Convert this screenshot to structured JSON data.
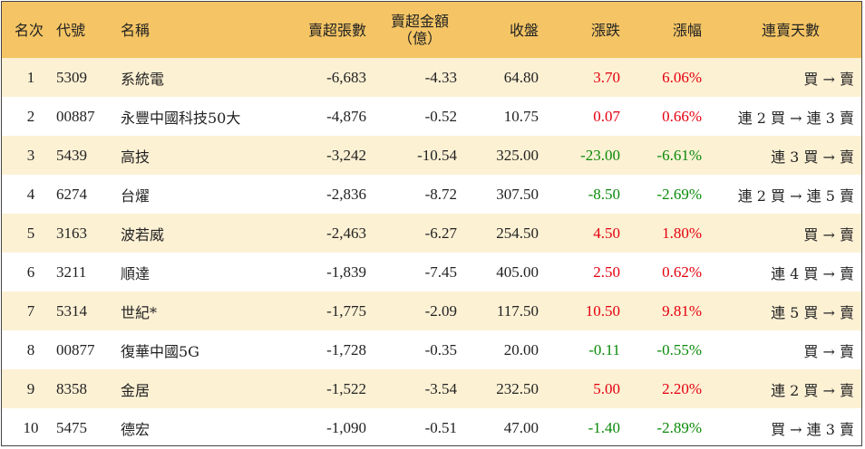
{
  "headers": {
    "rank": "名次",
    "code": "代號",
    "name": "名稱",
    "net_sell_lots": "賣超張數",
    "net_sell_amount_line1": "賣超金額",
    "net_sell_amount_line2": "（億）",
    "close": "收盤",
    "change": "漲跌",
    "pct_change": "漲幅",
    "streak": "連賣天數"
  },
  "colors": {
    "header_bg": "#F5C565",
    "odd_row_bg": "#FDF1D4",
    "even_row_bg": "#FFFFFF",
    "up": "#E4000F",
    "down": "#0A8A0A"
  },
  "rows": [
    {
      "rank": "1",
      "code": "5309",
      "name": "系統電",
      "lots": "-6,683",
      "amount": "-4.33",
      "close": "64.80",
      "change": "3.70",
      "pct": "6.06%",
      "dir": "up",
      "streak": "買 → 賣"
    },
    {
      "rank": "2",
      "code": "00887",
      "name": "永豐中國科技50大",
      "lots": "-4,876",
      "amount": "-0.52",
      "close": "10.75",
      "change": "0.07",
      "pct": "0.66%",
      "dir": "up",
      "streak": "連 2 買 → 連 3 賣"
    },
    {
      "rank": "3",
      "code": "5439",
      "name": "高技",
      "lots": "-3,242",
      "amount": "-10.54",
      "close": "325.00",
      "change": "-23.00",
      "pct": "-6.61%",
      "dir": "down",
      "streak": "連 3 買 → 賣"
    },
    {
      "rank": "4",
      "code": "6274",
      "name": "台燿",
      "lots": "-2,836",
      "amount": "-8.72",
      "close": "307.50",
      "change": "-8.50",
      "pct": "-2.69%",
      "dir": "down",
      "streak": "連 2 買 → 連 5 賣"
    },
    {
      "rank": "5",
      "code": "3163",
      "name": "波若威",
      "lots": "-2,463",
      "amount": "-6.27",
      "close": "254.50",
      "change": "4.50",
      "pct": "1.80%",
      "dir": "up",
      "streak": "買 → 賣"
    },
    {
      "rank": "6",
      "code": "3211",
      "name": "順達",
      "lots": "-1,839",
      "amount": "-7.45",
      "close": "405.00",
      "change": "2.50",
      "pct": "0.62%",
      "dir": "up",
      "streak": "連 4 買 → 賣"
    },
    {
      "rank": "7",
      "code": "5314",
      "name": "世紀*",
      "lots": "-1,775",
      "amount": "-2.09",
      "close": "117.50",
      "change": "10.50",
      "pct": "9.81%",
      "dir": "up",
      "streak": "連 5 買 → 賣"
    },
    {
      "rank": "8",
      "code": "00877",
      "name": "復華中國5G",
      "lots": "-1,728",
      "amount": "-0.35",
      "close": "20.00",
      "change": "-0.11",
      "pct": "-0.55%",
      "dir": "down",
      "streak": "買 → 賣"
    },
    {
      "rank": "9",
      "code": "8358",
      "name": "金居",
      "lots": "-1,522",
      "amount": "-3.54",
      "close": "232.50",
      "change": "5.00",
      "pct": "2.20%",
      "dir": "up",
      "streak": "連 2 買 → 賣"
    },
    {
      "rank": "10",
      "code": "5475",
      "name": "德宏",
      "lots": "-1,090",
      "amount": "-0.51",
      "close": "47.00",
      "change": "-1.40",
      "pct": "-2.89%",
      "dir": "down",
      "streak": "買 → 連 3 賣"
    }
  ]
}
